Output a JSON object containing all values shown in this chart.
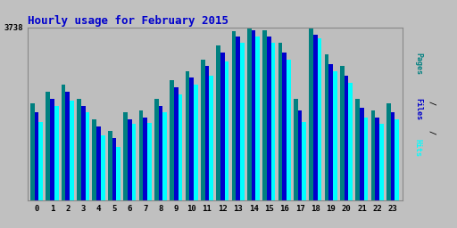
{
  "title": "Hourly usage for February 2015",
  "hours": [
    0,
    1,
    2,
    3,
    4,
    5,
    6,
    7,
    8,
    9,
    10,
    11,
    12,
    13,
    14,
    15,
    16,
    17,
    18,
    19,
    20,
    21,
    22,
    23
  ],
  "pages": [
    2100,
    2350,
    2500,
    2200,
    1750,
    1500,
    1900,
    1950,
    2200,
    2600,
    2800,
    3050,
    3350,
    3650,
    3738,
    3680,
    3400,
    2200,
    3738,
    3150,
    2900,
    2200,
    1950,
    2100
  ],
  "files": [
    1900,
    2200,
    2350,
    2050,
    1600,
    1350,
    1750,
    1800,
    2050,
    2450,
    2650,
    2900,
    3200,
    3550,
    3680,
    3550,
    3200,
    1950,
    3580,
    2950,
    2700,
    2000,
    1800,
    1900
  ],
  "hits": [
    1700,
    2050,
    2150,
    1900,
    1400,
    1150,
    1650,
    1680,
    1900,
    2300,
    2500,
    2700,
    3000,
    3400,
    3550,
    3400,
    3050,
    1700,
    3500,
    2800,
    2550,
    1800,
    1650,
    1750
  ],
  "ymax": 3738,
  "pages_color": "#008080",
  "files_color": "#0000cc",
  "hits_color": "#00ffff",
  "bg_color": "#c0c0c0",
  "plot_bg_color": "#bebebe",
  "title_color": "#0000cc",
  "bar_width": 0.27,
  "ytick_label": "3738",
  "grid_color": "#b0b0b0",
  "ylabel_pages_color": "#008080",
  "ylabel_files_color": "#0000cc",
  "ylabel_hits_color": "#00ffff"
}
